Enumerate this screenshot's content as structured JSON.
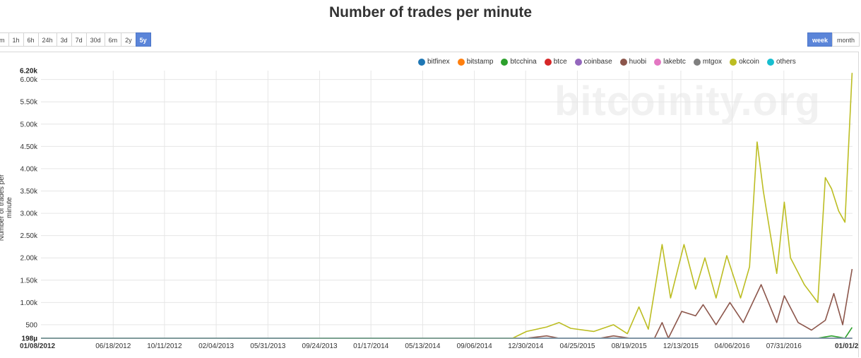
{
  "title": "Number of trades per minute",
  "watermark": "bitcoinity.org",
  "ranges": [
    "m",
    "1h",
    "6h",
    "24h",
    "3d",
    "7d",
    "30d",
    "6m",
    "2y",
    "5y"
  ],
  "active_range": "5y",
  "periods": [
    "week",
    "month"
  ],
  "active_period": "week",
  "chart_data": {
    "type": "line",
    "title": "Number of trades per minute",
    "ylabel": "Number of trades per minute",
    "xlabel": "",
    "ylim": [
      198,
      6200
    ],
    "ymin_label": "198µ",
    "ymax_label": "6.20k",
    "yticks": [
      500,
      1000,
      1500,
      2000,
      2500,
      3000,
      3500,
      4000,
      4500,
      5000,
      5500,
      6000
    ],
    "ytick_labels": [
      "500",
      "1.00k",
      "1.50k",
      "2.00k",
      "2.50k",
      "3.00k",
      "3.50k",
      "4.00k",
      "4.50k",
      "5.00k",
      "5.50k",
      "6.00k"
    ],
    "xticks": [
      "01/08/2012",
      "06/18/2012",
      "10/11/2012",
      "02/04/2013",
      "05/31/2013",
      "09/24/2013",
      "01/17/2014",
      "05/13/2014",
      "09/06/2014",
      "12/30/2014",
      "04/25/2015",
      "08/19/2015",
      "12/13/2015",
      "04/06/2016",
      "07/31/2016",
      "01/01/2"
    ],
    "x_start": "2012-01-08",
    "x_end": "2017-01-01",
    "grid": true,
    "legend_position": "top-right",
    "series": [
      {
        "name": "bitfinex",
        "color": "#1f77b4",
        "points": [
          [
            "2013-03-01",
            5
          ],
          [
            "2014-01-01",
            10
          ],
          [
            "2015-01-01",
            12
          ],
          [
            "2016-01-01",
            15
          ],
          [
            "2016-12-31",
            25
          ]
        ]
      },
      {
        "name": "bitstamp",
        "color": "#ff7f0e",
        "points": [
          [
            "2012-01-08",
            2
          ],
          [
            "2013-05-01",
            10
          ],
          [
            "2014-01-01",
            15
          ],
          [
            "2015-01-01",
            15
          ],
          [
            "2016-01-01",
            20
          ],
          [
            "2016-12-31",
            40
          ]
        ]
      },
      {
        "name": "btcchina",
        "color": "#2ca02c",
        "points": [
          [
            "2013-10-01",
            5
          ],
          [
            "2014-01-01",
            30
          ],
          [
            "2014-06-01",
            20
          ],
          [
            "2015-01-01",
            50
          ],
          [
            "2015-06-01",
            60
          ],
          [
            "2015-11-15",
            90
          ],
          [
            "2015-12-01",
            150
          ],
          [
            "2016-01-15",
            120
          ],
          [
            "2016-03-01",
            100
          ],
          [
            "2016-04-01",
            200
          ],
          [
            "2016-06-01",
            120
          ],
          [
            "2016-07-15",
            180
          ],
          [
            "2016-09-01",
            100
          ],
          [
            "2016-10-15",
            200
          ],
          [
            "2016-11-15",
            250
          ],
          [
            "2016-12-15",
            200
          ],
          [
            "2016-12-31",
            440
          ]
        ]
      },
      {
        "name": "btce",
        "color": "#d62728",
        "points": [
          [
            "2012-01-08",
            2
          ],
          [
            "2013-05-01",
            8
          ],
          [
            "2014-01-01",
            12
          ],
          [
            "2015-01-01",
            10
          ],
          [
            "2016-01-01",
            12
          ],
          [
            "2016-12-31",
            15
          ]
        ]
      },
      {
        "name": "coinbase",
        "color": "#9467bd",
        "points": [
          [
            "2015-01-26",
            2
          ],
          [
            "2015-06-01",
            8
          ],
          [
            "2016-01-01",
            12
          ],
          [
            "2016-12-31",
            25
          ]
        ]
      },
      {
        "name": "huobi",
        "color": "#8c564b",
        "points": [
          [
            "2013-09-01",
            3
          ],
          [
            "2014-01-01",
            50
          ],
          [
            "2014-03-01",
            20
          ],
          [
            "2014-09-01",
            30
          ],
          [
            "2015-01-01",
            200
          ],
          [
            "2015-02-15",
            250
          ],
          [
            "2015-03-15",
            150
          ],
          [
            "2015-05-01",
            100
          ],
          [
            "2015-06-15",
            200
          ],
          [
            "2015-07-15",
            250
          ],
          [
            "2015-08-20",
            200
          ],
          [
            "2015-09-15",
            100
          ],
          [
            "2015-10-15",
            200
          ],
          [
            "2015-11-01",
            550
          ],
          [
            "2015-11-15",
            200
          ],
          [
            "2015-12-15",
            800
          ],
          [
            "2016-01-15",
            700
          ],
          [
            "2016-02-01",
            950
          ],
          [
            "2016-03-01",
            500
          ],
          [
            "2016-04-01",
            1000
          ],
          [
            "2016-05-01",
            550
          ],
          [
            "2016-06-10",
            1400
          ],
          [
            "2016-07-15",
            550
          ],
          [
            "2016-08-01",
            1150
          ],
          [
            "2016-09-01",
            550
          ],
          [
            "2016-10-01",
            380
          ],
          [
            "2016-11-01",
            600
          ],
          [
            "2016-11-20",
            1200
          ],
          [
            "2016-12-10",
            500
          ],
          [
            "2016-12-31",
            1750
          ]
        ]
      },
      {
        "name": "lakebtc",
        "color": "#e377c2",
        "points": [
          [
            "2014-03-01",
            2
          ],
          [
            "2015-06-01",
            10
          ],
          [
            "2016-01-01",
            20
          ],
          [
            "2016-12-31",
            30
          ]
        ]
      },
      {
        "name": "mtgox",
        "color": "#7f7f7f",
        "points": [
          [
            "2012-01-08",
            10
          ],
          [
            "2013-04-10",
            35
          ],
          [
            "2013-06-01",
            15
          ],
          [
            "2014-02-25",
            5
          ]
        ]
      },
      {
        "name": "okcoin",
        "color": "#bcbd22",
        "points": [
          [
            "2013-09-01",
            5
          ],
          [
            "2014-01-01",
            70
          ],
          [
            "2014-03-01",
            30
          ],
          [
            "2014-09-01",
            60
          ],
          [
            "2014-12-01",
            200
          ],
          [
            "2015-01-01",
            350
          ],
          [
            "2015-02-15",
            450
          ],
          [
            "2015-03-15",
            550
          ],
          [
            "2015-04-10",
            420
          ],
          [
            "2015-06-01",
            350
          ],
          [
            "2015-07-15",
            500
          ],
          [
            "2015-08-15",
            300
          ],
          [
            "2015-09-10",
            900
          ],
          [
            "2015-10-01",
            400
          ],
          [
            "2015-11-01",
            2300
          ],
          [
            "2015-11-20",
            1100
          ],
          [
            "2015-12-20",
            2300
          ],
          [
            "2016-01-15",
            1300
          ],
          [
            "2016-02-05",
            2000
          ],
          [
            "2016-03-01",
            1100
          ],
          [
            "2016-03-25",
            2050
          ],
          [
            "2016-04-25",
            1100
          ],
          [
            "2016-05-15",
            1800
          ],
          [
            "2016-06-01",
            4600
          ],
          [
            "2016-06-15",
            3500
          ],
          [
            "2016-07-15",
            1650
          ],
          [
            "2016-08-01",
            3250
          ],
          [
            "2016-08-15",
            2000
          ],
          [
            "2016-09-15",
            1400
          ],
          [
            "2016-10-15",
            1000
          ],
          [
            "2016-11-01",
            3800
          ],
          [
            "2016-11-15",
            3550
          ],
          [
            "2016-12-01",
            3050
          ],
          [
            "2016-12-15",
            2800
          ],
          [
            "2016-12-31",
            6150
          ]
        ]
      },
      {
        "name": "others",
        "color": "#17becf",
        "points": [
          [
            "2012-01-08",
            15
          ],
          [
            "2013-01-01",
            12
          ],
          [
            "2014-01-01",
            20
          ],
          [
            "2015-01-01",
            25
          ],
          [
            "2016-01-01",
            30
          ],
          [
            "2016-12-31",
            30
          ]
        ]
      }
    ]
  }
}
